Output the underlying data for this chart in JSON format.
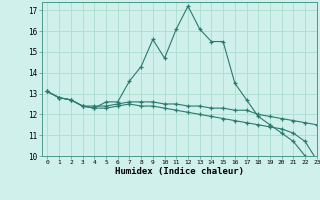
{
  "title": "",
  "xlabel": "Humidex (Indice chaleur)",
  "bg_color": "#cff0eb",
  "line_color": "#2a7a6e",
  "grid_color": "#aaddcc",
  "xlim": [
    -0.5,
    23
  ],
  "ylim": [
    10,
    17.4
  ],
  "xticks": [
    0,
    1,
    2,
    3,
    4,
    5,
    6,
    7,
    8,
    9,
    10,
    11,
    12,
    13,
    14,
    15,
    16,
    17,
    18,
    19,
    20,
    21,
    22,
    23
  ],
  "yticks": [
    10,
    11,
    12,
    13,
    14,
    15,
    16,
    17
  ],
  "series": [
    {
      "x": [
        0,
        1,
        2,
        3,
        4,
        5,
        6,
        7,
        8,
        9,
        10,
        11,
        12,
        13,
        14,
        15,
        16,
        17,
        18,
        19,
        20,
        21,
        22,
        23
      ],
      "y": [
        13.1,
        12.8,
        12.7,
        12.4,
        12.3,
        12.6,
        12.6,
        13.6,
        14.3,
        15.6,
        14.7,
        16.1,
        17.2,
        16.1,
        15.5,
        15.5,
        13.5,
        12.7,
        11.9,
        11.5,
        11.1,
        10.7,
        10.0,
        9.8
      ]
    },
    {
      "x": [
        0,
        1,
        2,
        3,
        4,
        5,
        6,
        7,
        8,
        9,
        10,
        11,
        12,
        13,
        14,
        15,
        16,
        17,
        18,
        19,
        20,
        21,
        22,
        23
      ],
      "y": [
        13.1,
        12.8,
        12.7,
        12.4,
        12.4,
        12.4,
        12.5,
        12.6,
        12.6,
        12.6,
        12.5,
        12.5,
        12.4,
        12.4,
        12.3,
        12.3,
        12.2,
        12.2,
        12.0,
        11.9,
        11.8,
        11.7,
        11.6,
        11.5
      ]
    },
    {
      "x": [
        0,
        1,
        2,
        3,
        4,
        5,
        6,
        7,
        8,
        9,
        10,
        11,
        12,
        13,
        14,
        15,
        16,
        17,
        18,
        19,
        20,
        21,
        22,
        23
      ],
      "y": [
        13.1,
        12.8,
        12.7,
        12.4,
        12.3,
        12.3,
        12.4,
        12.5,
        12.4,
        12.4,
        12.3,
        12.2,
        12.1,
        12.0,
        11.9,
        11.8,
        11.7,
        11.6,
        11.5,
        11.4,
        11.3,
        11.1,
        10.7,
        9.8
      ]
    }
  ]
}
